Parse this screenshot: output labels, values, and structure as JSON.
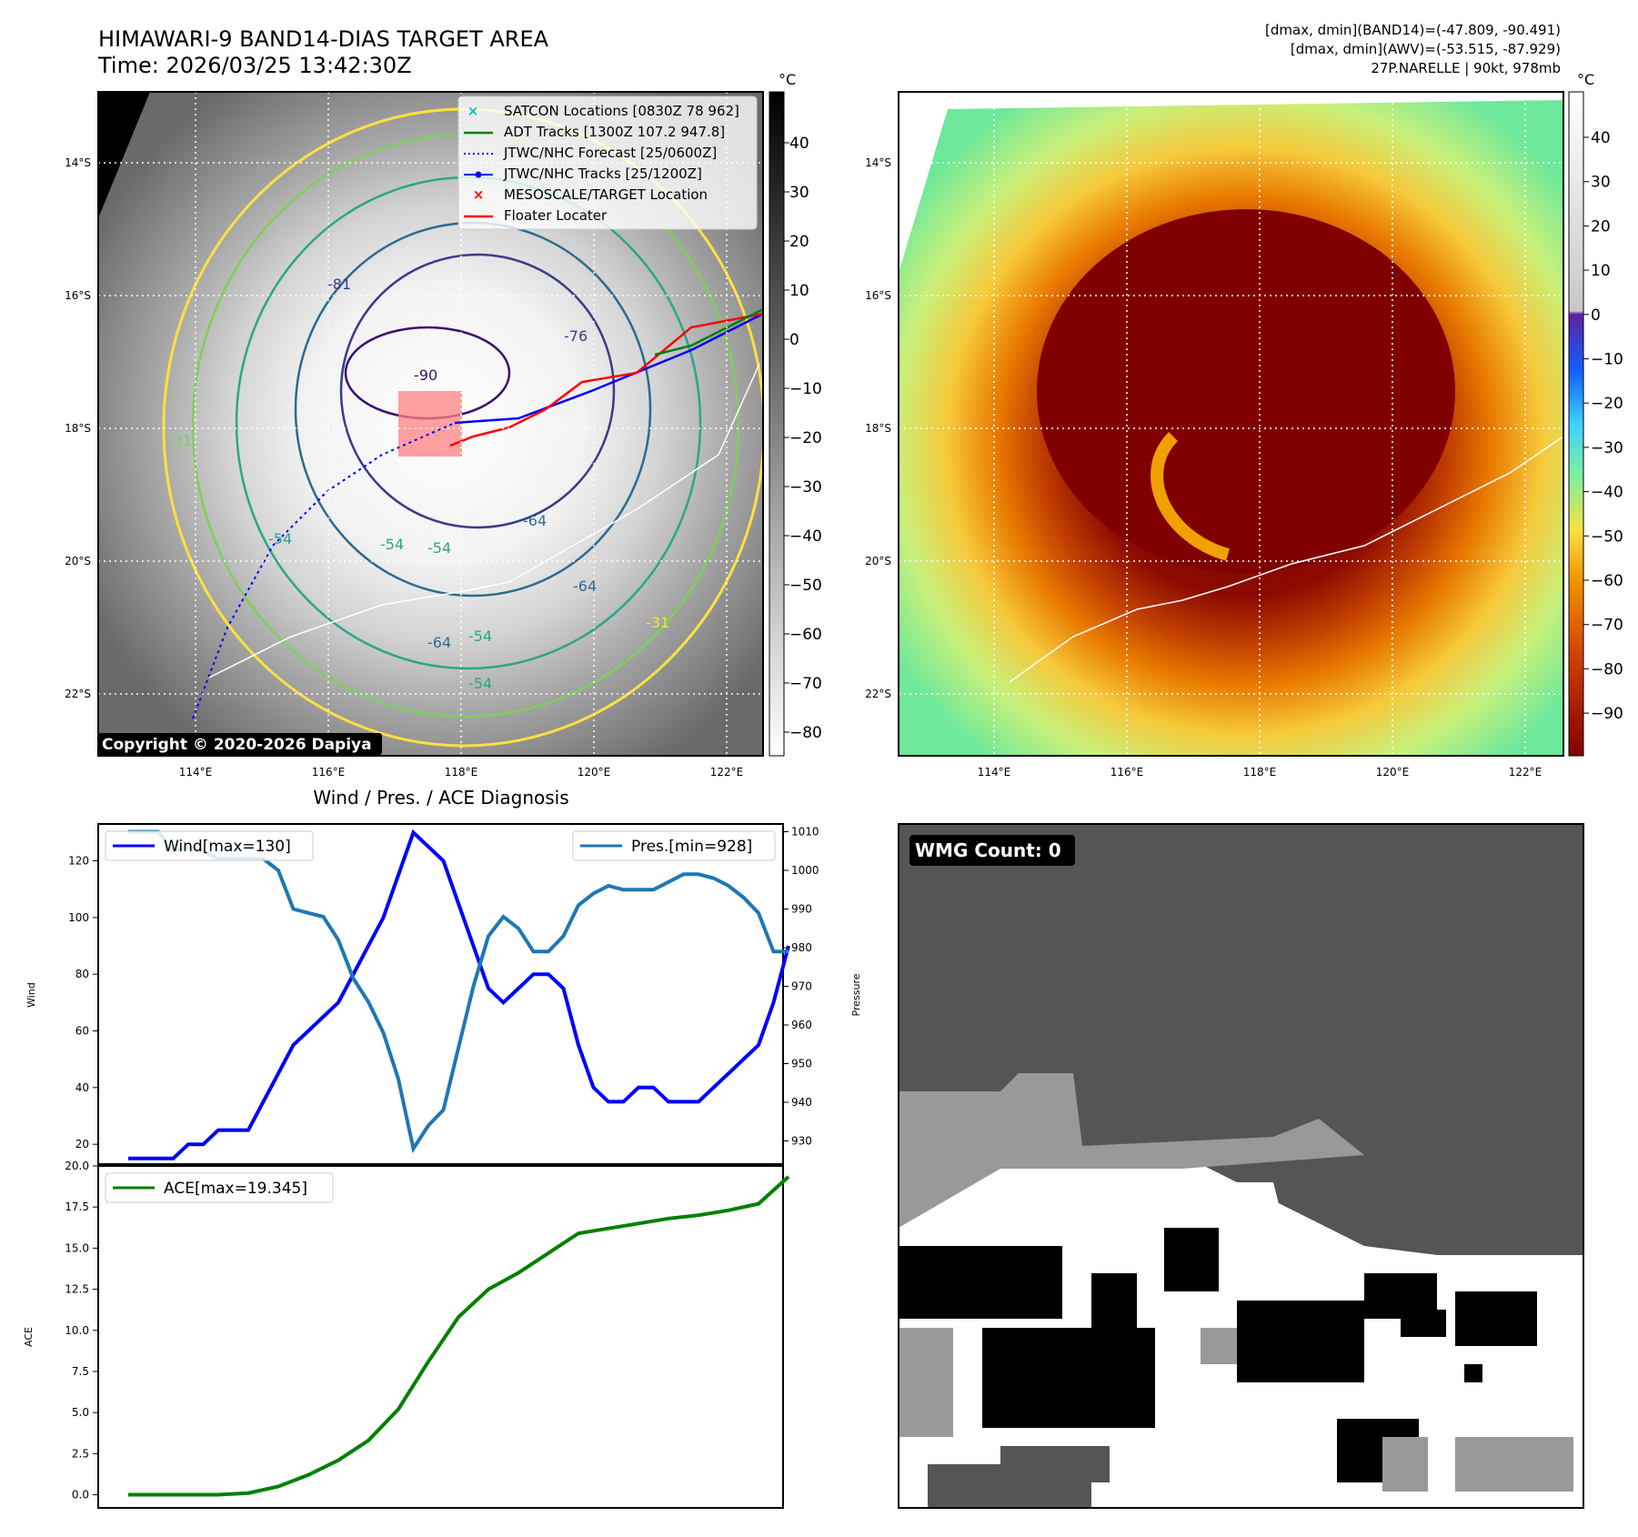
{
  "header": {
    "title_line1": "HIMAWARI-9 BAND14-DIAS TARGET AREA",
    "title_line2": "Time: 2026/03/25 13:42:30Z",
    "info_line1": "[dmax, dmin](BAND14)=(-47.809, -90.491)",
    "info_line2": "[dmax, dmin](AWV)=(-53.515, -87.929)",
    "info_line3": "27P.NARELLE | 90kt, 978mb"
  },
  "colors": {
    "wind": "#0000ff",
    "pressure": "#1f77b4",
    "ace": "#008000",
    "track": "#0000ff",
    "floater": "#ff0000",
    "adt": "#008000",
    "satcon": "#00bfbf",
    "target_box": "#ff8080"
  },
  "map_panels": {
    "lat_ticks": [
      "14°S",
      "16°S",
      "18°S",
      "20°S",
      "22°S"
    ],
    "lon_ticks": [
      "114°E",
      "116°E",
      "118°E",
      "120°E",
      "122°E"
    ],
    "left_colorbar": {
      "unit": "°C",
      "ticks": [
        "40",
        "30",
        "20",
        "10",
        "0",
        "−10",
        "−20",
        "−30",
        "−40",
        "−50",
        "−60",
        "−70",
        "−80"
      ]
    },
    "right_colorbar": {
      "unit": "°C",
      "ticks": [
        "40",
        "30",
        "20",
        "10",
        "0",
        "−10",
        "−20",
        "−30",
        "−40",
        "−50",
        "−60",
        "−70",
        "−80",
        "−90"
      ]
    },
    "legend": [
      "SATCON Locations [0830Z 78 962]",
      "ADT Tracks [1300Z 107.2 947.8]",
      "JTWC/NHC Forecast [25/0600Z]",
      "JTWC/NHC Tracks [25/1200Z]",
      "MESOSCALE/TARGET Location",
      "Floater Locater"
    ],
    "contour_labels": [
      "-81",
      "-90",
      "-76",
      "-64",
      "-54",
      "-54",
      "-54",
      "-64",
      "-54",
      "-54",
      "-31",
      "-31",
      "-64"
    ],
    "copyright": "Copyright © 2020-2026 Dapiya",
    "wmg_label": "WMG Count: 0"
  },
  "chart_data": [
    {
      "type": "line",
      "title": "Wind / Pres. / ACE Diagnosis",
      "ylabel": "Wind",
      "y2label": "Pressure",
      "ylim": [
        13,
        133
      ],
      "y2lim": [
        924,
        1012
      ],
      "yticks": [
        20,
        40,
        60,
        80,
        100,
        120
      ],
      "y2ticks": [
        930,
        940,
        950,
        960,
        970,
        980,
        990,
        1000,
        1010
      ],
      "legend_left": "Wind[max=130]",
      "legend_right": "Pres.[min=928]",
      "series": [
        {
          "name": "Wind[max=130]",
          "axis": "left",
          "x": [
            0,
            1,
            2,
            3,
            4,
            5,
            6,
            7,
            8,
            9,
            10,
            11,
            12,
            13,
            14,
            15,
            16,
            17,
            18,
            19,
            20,
            21,
            22,
            23,
            24,
            25,
            26,
            27,
            28,
            29,
            30,
            31,
            32,
            33,
            34,
            35,
            36,
            37,
            38,
            39,
            40,
            41,
            42,
            43,
            44,
            45
          ],
          "values": [
            15,
            15,
            15,
            15,
            20,
            20,
            25,
            25,
            25,
            35,
            45,
            55,
            60,
            65,
            70,
            80,
            90,
            100,
            115,
            130,
            125,
            120,
            105,
            90,
            75,
            70,
            75,
            80,
            80,
            75,
            55,
            40,
            35,
            35,
            40,
            40,
            35,
            35,
            35,
            40,
            45,
            50,
            55,
            70,
            90,
            null
          ]
        },
        {
          "name": "Pres.[min=928]",
          "axis": "right",
          "x": [
            0,
            1,
            2,
            3,
            4,
            5,
            6,
            7,
            8,
            9,
            10,
            11,
            12,
            13,
            14,
            15,
            16,
            17,
            18,
            19,
            20,
            21,
            22,
            23,
            24,
            25,
            26,
            27,
            28,
            29,
            30,
            31,
            32,
            33,
            34,
            35,
            36,
            37,
            38,
            39,
            40,
            41,
            42,
            43,
            44,
            45
          ],
          "values": [
            1010,
            1010,
            1010,
            1005,
            1006,
            1005,
            1003,
            1003,
            1003,
            1003,
            1000,
            990,
            989,
            988,
            982,
            972,
            966,
            958,
            946,
            928,
            934,
            938,
            954,
            970,
            983,
            988,
            985,
            979,
            979,
            983,
            991,
            994,
            996,
            995,
            995,
            995,
            997,
            999,
            999,
            998,
            996,
            993,
            989,
            979,
            979,
            null
          ]
        }
      ]
    },
    {
      "type": "line",
      "ylabel": "ACE",
      "ylim": [
        -0.8,
        20
      ],
      "yticks": [
        "0.0",
        "2.5",
        "5.0",
        "7.5",
        "10.0",
        "12.5",
        "15.0",
        "17.5",
        "20.0"
      ],
      "legend": "ACE[max=19.345]",
      "series": [
        {
          "name": "ACE[max=19.345]",
          "x": [
            0,
            2,
            4,
            6,
            8,
            10,
            12,
            14,
            16,
            18,
            20,
            22,
            24,
            26,
            28,
            30,
            32,
            34,
            36,
            38,
            40,
            42,
            44
          ],
          "values": [
            0.0,
            0.0,
            0.0,
            0.0,
            0.1,
            0.5,
            1.2,
            2.1,
            3.3,
            5.2,
            8.1,
            10.8,
            12.5,
            13.5,
            14.7,
            15.9,
            16.2,
            16.5,
            16.8,
            17.0,
            17.3,
            17.7,
            19.345
          ]
        }
      ]
    }
  ]
}
